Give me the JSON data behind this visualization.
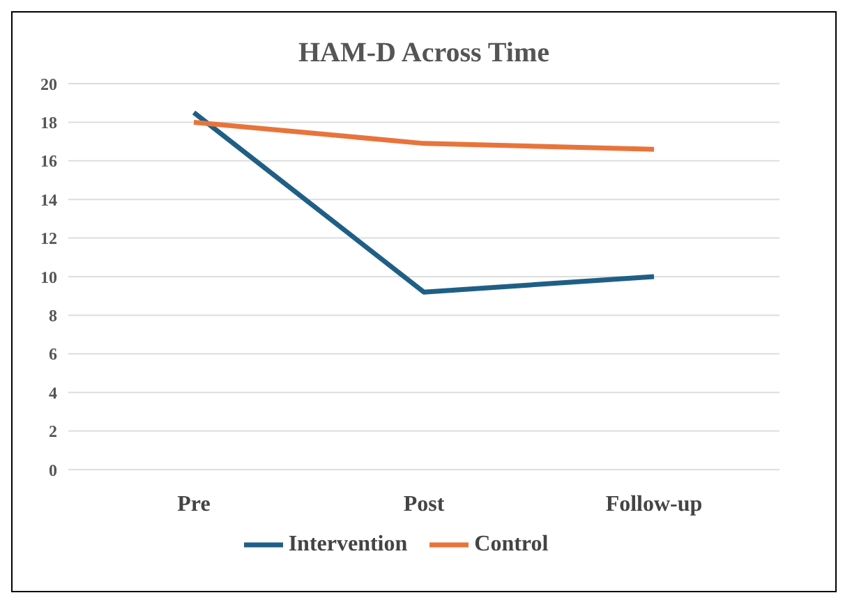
{
  "chart_data": {
    "type": "line",
    "title": "HAM-D Across Time",
    "categories": [
      "Pre",
      "Post",
      "Follow-up"
    ],
    "series": [
      {
        "name": "Intervention",
        "color": "#1f5f85",
        "values": [
          18.5,
          9.2,
          10.0
        ]
      },
      {
        "name": "Control",
        "color": "#e8743b",
        "values": [
          18.0,
          16.9,
          16.6
        ]
      }
    ],
    "ylim": [
      0,
      20
    ],
    "yticks": [
      0,
      2,
      4,
      6,
      8,
      10,
      12,
      14,
      16,
      18,
      20
    ],
    "grid": "y",
    "legend": "bottom",
    "marker": "none",
    "line_style": "solid"
  }
}
